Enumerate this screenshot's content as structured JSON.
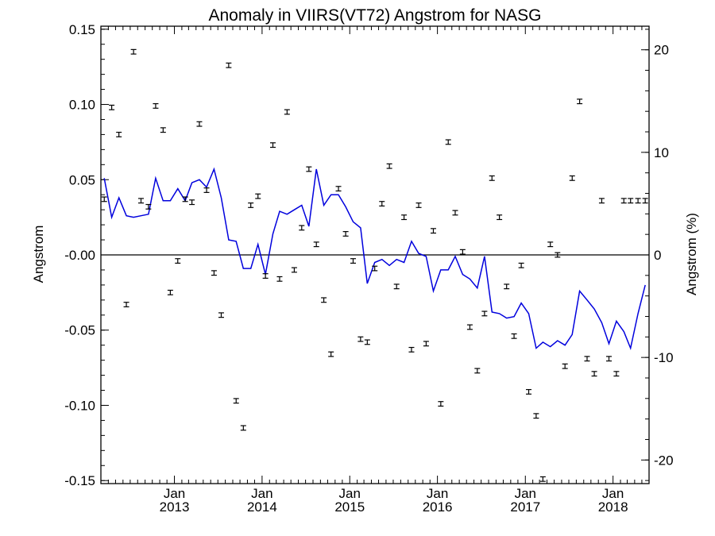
{
  "chart_data": {
    "type": "scatter",
    "title": "Anomaly in VIIRS(VT72) Angstrom for NASG",
    "ylabel": "Angstrom",
    "ylabel_right": "Angstrom (%)",
    "ylim": [
      -0.152,
      0.152
    ],
    "ylim_right": [
      -22.3,
      22.3
    ],
    "yticks": [
      0.15,
      0.1,
      0.05,
      0.0,
      -0.05,
      -0.1,
      -0.15
    ],
    "yticklabels": [
      "0.15",
      "0.10",
      "0.05",
      "-0.00",
      "-0.05",
      "-0.10",
      "-0.15"
    ],
    "yticks_right": [
      20,
      10,
      0,
      -10,
      -20
    ],
    "yticklabels_right": [
      "20",
      "10",
      "0",
      "-10",
      "-20"
    ],
    "xlim": [
      "2012-03-01",
      "2018-05-31"
    ],
    "xticks": [
      {
        "date": "2013-01-01",
        "month": "Jan",
        "year": "2013"
      },
      {
        "date": "2014-01-01",
        "month": "Jan",
        "year": "2014"
      },
      {
        "date": "2015-01-01",
        "month": "Jan",
        "year": "2015"
      },
      {
        "date": "2016-01-01",
        "month": "Jan",
        "year": "2016"
      },
      {
        "date": "2017-01-01",
        "month": "Jan",
        "year": "2017"
      },
      {
        "date": "2018-01-01",
        "month": "Jan",
        "year": "2018"
      }
    ],
    "zero_line": 0,
    "colors": {
      "points": "#000000",
      "line": "#0000dd",
      "axes": "#000000"
    },
    "series": [
      {
        "kind": "errorbar",
        "x": [
          "2012-03",
          "2012-04",
          "2012-05",
          "2012-06",
          "2012-07",
          "2012-08",
          "2012-09",
          "2012-10",
          "2012-11",
          "2012-12",
          "2013-01",
          "2013-02",
          "2013-03",
          "2013-04",
          "2013-05",
          "2013-06",
          "2013-07",
          "2013-08",
          "2013-09",
          "2013-10",
          "2013-11",
          "2013-12",
          "2014-01",
          "2014-02",
          "2014-03",
          "2014-04",
          "2014-05",
          "2014-06",
          "2014-07",
          "2014-08",
          "2014-09",
          "2014-10",
          "2014-11",
          "2014-12",
          "2015-01",
          "2015-02",
          "2015-03",
          "2015-04",
          "2015-05",
          "2015-06",
          "2015-07",
          "2015-08",
          "2015-09",
          "2015-10",
          "2015-11",
          "2015-12",
          "2016-01",
          "2016-02",
          "2016-03",
          "2016-04",
          "2016-05",
          "2016-06",
          "2016-07",
          "2016-08",
          "2016-09",
          "2016-10",
          "2016-11",
          "2016-12",
          "2017-01",
          "2017-02",
          "2017-03",
          "2017-04",
          "2017-05",
          "2017-06",
          "2017-07",
          "2017-08",
          "2017-09",
          "2017-10",
          "2017-11",
          "2017-12",
          "2018-01",
          "2018-02",
          "2018-03",
          "2018-04",
          "2018-05"
        ],
        "y": [
          0.037,
          0.098,
          0.08,
          -0.033,
          0.135,
          0.036,
          0.032,
          0.099,
          0.083,
          -0.025,
          -0.004,
          0.037,
          0.035,
          0.087,
          0.043,
          -0.012,
          -0.04,
          0.126,
          -0.097,
          -0.115,
          0.033,
          0.039,
          -0.014,
          0.073,
          -0.016,
          0.095,
          -0.01,
          0.018,
          0.057,
          0.007,
          -0.03,
          -0.066,
          0.044,
          0.014,
          -0.004,
          -0.056,
          -0.058,
          -0.009,
          0.034,
          0.059,
          -0.021,
          0.025,
          -0.063,
          0.033,
          -0.059,
          0.016,
          -0.099,
          0.075,
          0.028,
          0.002,
          -0.048,
          -0.077,
          -0.039,
          0.051,
          0.025,
          -0.021,
          -0.054,
          -0.007,
          -0.091,
          -0.107,
          -0.149,
          0.007,
          0.0,
          -0.074,
          0.051,
          0.102,
          -0.069,
          -0.079,
          0.036,
          -0.069,
          -0.079,
          0.036,
          0.036,
          0.036,
          0.036
        ],
        "err": 0.0015
      },
      {
        "kind": "line",
        "x": [
          "2012-03",
          "2012-04",
          "2012-05",
          "2012-06",
          "2012-07",
          "2012-08",
          "2012-09",
          "2012-10",
          "2012-11",
          "2012-12",
          "2013-01",
          "2013-02",
          "2013-03",
          "2013-04",
          "2013-05",
          "2013-06",
          "2013-07",
          "2013-08",
          "2013-09",
          "2013-10",
          "2013-11",
          "2013-12",
          "2014-01",
          "2014-02",
          "2014-03",
          "2014-04",
          "2014-05",
          "2014-06",
          "2014-07",
          "2014-08",
          "2014-09",
          "2014-10",
          "2014-11",
          "2014-12",
          "2015-01",
          "2015-02",
          "2015-03",
          "2015-04",
          "2015-05",
          "2015-06",
          "2015-07",
          "2015-08",
          "2015-09",
          "2015-10",
          "2015-11",
          "2015-12",
          "2016-01",
          "2016-02",
          "2016-03",
          "2016-04",
          "2016-05",
          "2016-06",
          "2016-07",
          "2016-08",
          "2016-09",
          "2016-10",
          "2016-11",
          "2016-12",
          "2017-01",
          "2017-02",
          "2017-03",
          "2017-04",
          "2017-05",
          "2017-06",
          "2017-07",
          "2017-08",
          "2017-09",
          "2017-10",
          "2017-11",
          "2017-12",
          "2018-01",
          "2018-02",
          "2018-03",
          "2018-04",
          "2018-05"
        ],
        "y": [
          0.051,
          0.025,
          0.038,
          0.026,
          0.025,
          0.026,
          0.027,
          0.051,
          0.036,
          0.036,
          0.044,
          0.036,
          0.048,
          0.05,
          0.045,
          0.057,
          0.038,
          0.01,
          0.009,
          -0.009,
          -0.009,
          0.007,
          -0.013,
          0.014,
          0.029,
          0.027,
          0.03,
          0.033,
          0.019,
          0.057,
          0.033,
          0.04,
          0.04,
          0.032,
          0.022,
          0.018,
          -0.019,
          -0.005,
          -0.003,
          -0.007,
          -0.003,
          -0.005,
          0.009,
          0.001,
          -0.001,
          -0.024,
          -0.01,
          -0.01,
          -0.001,
          -0.013,
          -0.016,
          -0.022,
          -0.001,
          -0.038,
          -0.039,
          -0.042,
          -0.041,
          -0.032,
          -0.039,
          -0.062,
          -0.058,
          -0.061,
          -0.057,
          -0.06,
          -0.053,
          -0.024,
          -0.03,
          -0.036,
          -0.045,
          -0.059,
          -0.044,
          -0.051,
          -0.062,
          -0.039,
          -0.02
        ]
      }
    ]
  }
}
